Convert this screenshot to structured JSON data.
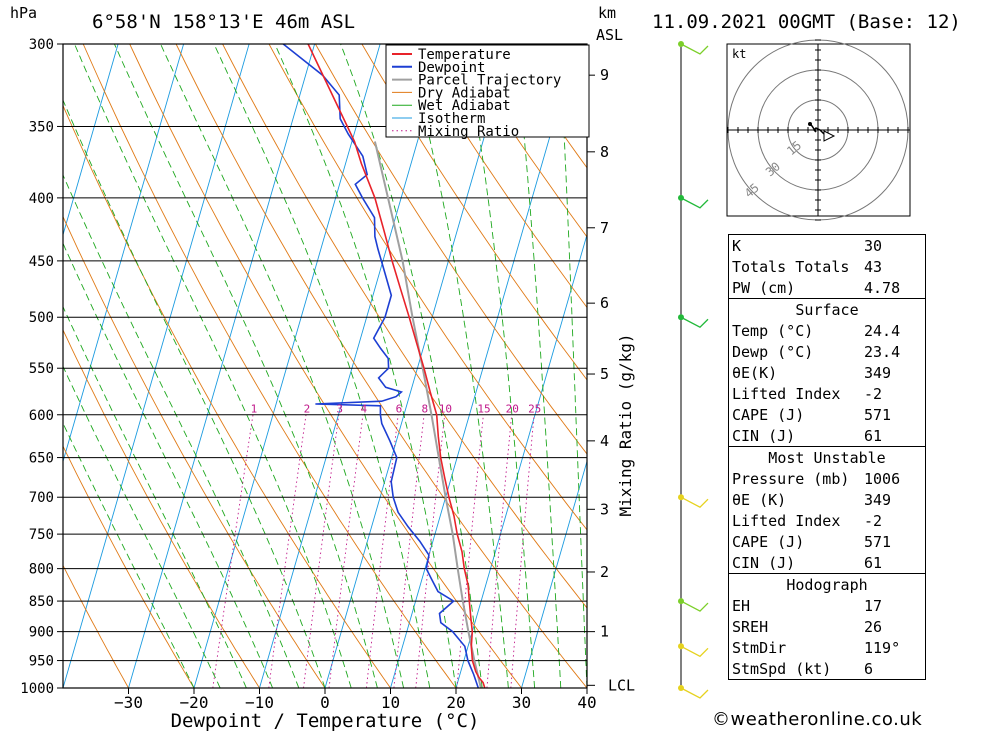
{
  "header": {
    "pressure_unit": "hPa",
    "location": "6°58'N  158°13'E  46m  ASL",
    "km_label": "km",
    "asl_label": "ASL",
    "datetime": "11.09.2021  00GMT  (Base: 12)"
  },
  "chart_data": {
    "type": "line",
    "xlabel": "Dewpoint / Temperature (°C)",
    "ylabel": "",
    "y2label": "Mixing Ratio (g/kg)",
    "pressure_ticks": [
      300,
      350,
      400,
      450,
      500,
      550,
      600,
      650,
      700,
      750,
      800,
      850,
      900,
      950,
      1000
    ],
    "temp_ticks": [
      -30,
      -20,
      -10,
      0,
      10,
      20,
      30,
      40
    ],
    "xlim": [
      -40,
      40
    ],
    "ylim_hpa": [
      1000,
      300
    ],
    "skew_deg_per_ln": 23.6,
    "km_ticks": [
      {
        "label": "9",
        "hpa": 318
      },
      {
        "label": "8",
        "hpa": 367
      },
      {
        "label": "7",
        "hpa": 423
      },
      {
        "label": "6",
        "hpa": 487
      },
      {
        "label": "5",
        "hpa": 556
      },
      {
        "label": "4",
        "hpa": 630
      },
      {
        "label": "3",
        "hpa": 716
      },
      {
        "label": "2",
        "hpa": 805
      },
      {
        "label": "1",
        "hpa": 900
      },
      {
        "label": "LCL",
        "hpa": 995
      }
    ],
    "mixing_ratio_labels": [
      "1",
      "2",
      "3",
      "4",
      "6",
      "8",
      "10",
      "15",
      "20",
      "25"
    ],
    "mixing_ratio_values": [
      1,
      2,
      3,
      4,
      6,
      8,
      10,
      15,
      20,
      25
    ],
    "mixing_ratio_label_hpa": 593,
    "legend": [
      "Temperature",
      "Dewpoint",
      "Parcel Trajectory",
      "Dry Adiabat",
      "Wet Adiabat",
      "Isotherm",
      "Mixing Ratio"
    ],
    "legend_position": "top-right",
    "colors": {
      "temperature": "#e8232a",
      "dewpoint": "#1d3fd3",
      "parcel": "#a0a0a0",
      "dry_adiabat": "#e07a16",
      "wet_adiabat": "#1ea81e",
      "isotherm": "#1c9be0",
      "mixing_ratio": "#c0188a",
      "grid": "#000000"
    },
    "series": [
      {
        "name": "Temperature",
        "points": [
          [
            1000,
            24.4
          ],
          [
            990,
            23.9
          ],
          [
            980,
            23.0
          ],
          [
            970,
            22.3
          ],
          [
            950,
            21.3
          ],
          [
            925,
            20.5
          ],
          [
            900,
            20.0
          ],
          [
            875,
            19.1
          ],
          [
            850,
            18.2
          ],
          [
            825,
            17.3
          ],
          [
            800,
            16.0
          ],
          [
            775,
            14.9
          ],
          [
            750,
            13.4
          ],
          [
            725,
            12.1
          ],
          [
            700,
            10.5
          ],
          [
            675,
            9.0
          ],
          [
            650,
            7.5
          ],
          [
            625,
            6.2
          ],
          [
            600,
            5.0
          ],
          [
            575,
            3.0
          ],
          [
            550,
            1.0
          ],
          [
            525,
            -1.2
          ],
          [
            500,
            -3.5
          ],
          [
            475,
            -6.0
          ],
          [
            450,
            -8.6
          ],
          [
            425,
            -11.2
          ],
          [
            400,
            -14.0
          ],
          [
            375,
            -17.6
          ],
          [
            360,
            -19.6
          ],
          [
            300,
            -31.0
          ],
          [
            290,
            -33.5
          ]
        ]
      },
      {
        "name": "Dewpoint",
        "points": [
          [
            1000,
            23.4
          ],
          [
            975,
            22.1
          ],
          [
            950,
            20.6
          ],
          [
            925,
            19.5
          ],
          [
            900,
            17.0
          ],
          [
            885,
            14.8
          ],
          [
            870,
            14.2
          ],
          [
            850,
            15.8
          ],
          [
            835,
            13.0
          ],
          [
            815,
            11.4
          ],
          [
            800,
            10.2
          ],
          [
            780,
            10.0
          ],
          [
            760,
            8.0
          ],
          [
            740,
            5.6
          ],
          [
            720,
            3.4
          ],
          [
            700,
            2.0
          ],
          [
            680,
            1.0
          ],
          [
            650,
            0.8
          ],
          [
            630,
            -1.0
          ],
          [
            610,
            -3.0
          ],
          [
            600,
            -3.6
          ],
          [
            590,
            -4.0
          ],
          [
            588,
            -14.0
          ],
          [
            585,
            -4.0
          ],
          [
            580,
            -2.0
          ],
          [
            575,
            -1.4
          ],
          [
            570,
            -4.0
          ],
          [
            560,
            -5.5
          ],
          [
            550,
            -4.4
          ],
          [
            540,
            -4.9
          ],
          [
            530,
            -6.5
          ],
          [
            520,
            -8.0
          ],
          [
            500,
            -7.2
          ],
          [
            480,
            -7.2
          ],
          [
            460,
            -9.2
          ],
          [
            440,
            -11.3
          ],
          [
            430,
            -12.3
          ],
          [
            415,
            -13.2
          ],
          [
            400,
            -15.9
          ],
          [
            390,
            -17.6
          ],
          [
            383,
            -16.2
          ],
          [
            370,
            -17.7
          ],
          [
            355,
            -20.9
          ],
          [
            345,
            -22.8
          ],
          [
            330,
            -24.0
          ],
          [
            318,
            -27.4
          ],
          [
            300,
            -34.8
          ],
          [
            295,
            -36.0
          ]
        ]
      },
      {
        "name": "Parcel Trajectory",
        "points": [
          [
            1000,
            23.8
          ],
          [
            950,
            21.6
          ],
          [
            900,
            19.4
          ],
          [
            850,
            17.2
          ],
          [
            800,
            15.0
          ],
          [
            750,
            12.7
          ],
          [
            700,
            10.0
          ],
          [
            650,
            7.2
          ],
          [
            600,
            4.2
          ],
          [
            550,
            0.8
          ],
          [
            500,
            -3.0
          ],
          [
            450,
            -7.0
          ],
          [
            400,
            -12.0
          ],
          [
            360,
            -16.5
          ]
        ]
      }
    ]
  },
  "stats": {
    "rows": [
      {
        "label": "K",
        "value": "30"
      },
      {
        "label": "Totals Totals",
        "value": "43"
      },
      {
        "label": "PW (cm)",
        "value": "4.78"
      }
    ],
    "sections": [
      {
        "title": "Surface",
        "rows": [
          {
            "label": "Temp (°C)",
            "value": "24.4"
          },
          {
            "label": "Dewp (°C)",
            "value": "23.4"
          },
          {
            "label": "θE(K)",
            "value": "349"
          },
          {
            "label": "Lifted Index",
            "value": "-2"
          },
          {
            "label": "CAPE (J)",
            "value": "571"
          },
          {
            "label": "CIN (J)",
            "value": "61"
          }
        ]
      },
      {
        "title": "Most Unstable",
        "rows": [
          {
            "label": "Pressure (mb)",
            "value": "1006"
          },
          {
            "label": "θE (K)",
            "value": "349"
          },
          {
            "label": "Lifted Index",
            "value": "-2"
          },
          {
            "label": "CAPE (J)",
            "value": "571"
          },
          {
            "label": "CIN (J)",
            "value": "61"
          }
        ]
      },
      {
        "title": "Hodograph",
        "rows": [
          {
            "label": "EH",
            "value": "17"
          },
          {
            "label": "SREH",
            "value": "26"
          },
          {
            "label": "StmDir",
            "value": "119°"
          },
          {
            "label": "StmSpd (kt)",
            "value": "6"
          }
        ]
      }
    ]
  },
  "hodograph": {
    "unit_label": "kt",
    "ring_labels": [
      "15",
      "30",
      "45"
    ],
    "ring_values": [
      15,
      30,
      45
    ],
    "trace_kt": [
      [
        3,
        -2
      ],
      [
        1,
        0
      ],
      [
        -1,
        1
      ],
      [
        -2,
        0
      ],
      [
        -1,
        -1
      ],
      [
        -3,
        2
      ],
      [
        -4,
        3
      ]
    ],
    "storm_motion_kt": [
      5,
      -3
    ]
  },
  "winds": {
    "color_note": "wind barbs on right column",
    "barbs": [
      {
        "hpa": 300,
        "color": "#7ccf2a"
      },
      {
        "hpa": 400,
        "color": "#22b93a"
      },
      {
        "hpa": 500,
        "color": "#22b93a"
      },
      {
        "hpa": 700,
        "color": "#e6d21e"
      },
      {
        "hpa": 850,
        "color": "#7ccf2a"
      },
      {
        "hpa": 925,
        "color": "#e6d21e"
      },
      {
        "hpa": 1000,
        "color": "#e6d21e"
      }
    ]
  },
  "footer": {
    "copyright": "©weatheronline.co.uk"
  }
}
